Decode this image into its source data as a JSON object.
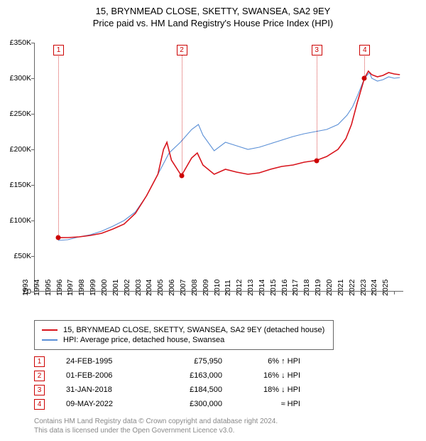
{
  "title_line1": "15, BRYNMEAD CLOSE, SKETTY, SWANSEA, SA2 9EY",
  "title_line2": "Price paid vs. HM Land Registry's House Price Index (HPI)",
  "chart": {
    "type": "line",
    "background_color": "#ffffff",
    "xlim": [
      1993,
      2025.8
    ],
    "ylim": [
      0,
      350000
    ],
    "ytick_step": 50000,
    "yticks": [
      "£0",
      "£50K",
      "£100K",
      "£150K",
      "£200K",
      "£250K",
      "£300K",
      "£350K"
    ],
    "xticks": [
      1993,
      1994,
      1995,
      1996,
      1997,
      1998,
      1999,
      2000,
      2001,
      2002,
      2003,
      2004,
      2005,
      2006,
      2007,
      2008,
      2009,
      2010,
      2011,
      2012,
      2013,
      2014,
      2015,
      2016,
      2017,
      2018,
      2019,
      2020,
      2021,
      2022,
      2023,
      2024,
      2025
    ],
    "series": [
      {
        "name": "15, BRYNMEAD CLOSE, SKETTY, SWANSEA, SA2 9EY (detached house)",
        "color": "#d8141c",
        "width": 1.6,
        "data": [
          [
            1995.15,
            75950
          ],
          [
            1996,
            76000
          ],
          [
            1997,
            77000
          ],
          [
            1998,
            79000
          ],
          [
            1999,
            82000
          ],
          [
            2000,
            88000
          ],
          [
            2001,
            95000
          ],
          [
            2002,
            110000
          ],
          [
            2003,
            135000
          ],
          [
            2004,
            165000
          ],
          [
            2004.5,
            200000
          ],
          [
            2004.8,
            210000
          ],
          [
            2005.2,
            185000
          ],
          [
            2006.09,
            163000
          ],
          [
            2007,
            188000
          ],
          [
            2007.5,
            195000
          ],
          [
            2008,
            178000
          ],
          [
            2009,
            165000
          ],
          [
            2010,
            172000
          ],
          [
            2011,
            168000
          ],
          [
            2012,
            165000
          ],
          [
            2013,
            167000
          ],
          [
            2014,
            172000
          ],
          [
            2015,
            176000
          ],
          [
            2016,
            178000
          ],
          [
            2017,
            182000
          ],
          [
            2018.08,
            184500
          ],
          [
            2019,
            190000
          ],
          [
            2020,
            200000
          ],
          [
            2020.7,
            215000
          ],
          [
            2021.2,
            235000
          ],
          [
            2021.7,
            265000
          ],
          [
            2022.35,
            300000
          ],
          [
            2022.7,
            310000
          ],
          [
            2023,
            305000
          ],
          [
            2023.5,
            302000
          ],
          [
            2024,
            304000
          ],
          [
            2024.5,
            308000
          ],
          [
            2025,
            306000
          ],
          [
            2025.5,
            305000
          ]
        ]
      },
      {
        "name": "HPI: Average price, detached house, Swansea",
        "color": "#5a8fd6",
        "width": 1.1,
        "data": [
          [
            1995.15,
            72000
          ],
          [
            1996,
            73000
          ],
          [
            1997,
            77000
          ],
          [
            1998,
            80000
          ],
          [
            1999,
            85000
          ],
          [
            2000,
            92000
          ],
          [
            2001,
            100000
          ],
          [
            2002,
            112000
          ],
          [
            2003,
            135000
          ],
          [
            2004,
            165000
          ],
          [
            2005,
            195000
          ],
          [
            2006,
            210000
          ],
          [
            2007,
            228000
          ],
          [
            2007.6,
            235000
          ],
          [
            2008,
            220000
          ],
          [
            2009,
            198000
          ],
          [
            2010,
            210000
          ],
          [
            2011,
            205000
          ],
          [
            2012,
            200000
          ],
          [
            2013,
            203000
          ],
          [
            2014,
            208000
          ],
          [
            2015,
            213000
          ],
          [
            2016,
            218000
          ],
          [
            2017,
            222000
          ],
          [
            2018,
            225000
          ],
          [
            2019,
            228000
          ],
          [
            2020,
            235000
          ],
          [
            2020.8,
            248000
          ],
          [
            2021.3,
            260000
          ],
          [
            2021.8,
            278000
          ],
          [
            2022.35,
            300000
          ],
          [
            2022.8,
            308000
          ],
          [
            2023,
            300000
          ],
          [
            2023.5,
            296000
          ],
          [
            2024,
            298000
          ],
          [
            2024.5,
            302000
          ],
          [
            2025,
            300000
          ],
          [
            2025.5,
            301000
          ]
        ]
      }
    ],
    "sale_markers": [
      {
        "n": "1",
        "date": "24-FEB-1995",
        "x": 1995.15,
        "price": 75950,
        "price_str": "£75,950",
        "diff": "6% ↑ HPI"
      },
      {
        "n": "2",
        "date": "01-FEB-2006",
        "x": 2006.09,
        "price": 163000,
        "price_str": "£163,000",
        "diff": "16% ↓ HPI"
      },
      {
        "n": "3",
        "date": "31-JAN-2018",
        "x": 2018.08,
        "price": 184500,
        "price_str": "£184,500",
        "diff": "18% ↓ HPI"
      },
      {
        "n": "4",
        "date": "09-MAY-2022",
        "x": 2022.35,
        "price": 300000,
        "price_str": "£300,000",
        "diff": "≈ HPI"
      }
    ],
    "marker_top_y": 340000
  },
  "legend": {
    "items": [
      {
        "color": "#d8141c",
        "label": "15, BRYNMEAD CLOSE, SKETTY, SWANSEA, SA2 9EY (detached house)"
      },
      {
        "color": "#5a8fd6",
        "label": "HPI: Average price, detached house, Swansea"
      }
    ]
  },
  "footer_line1": "Contains HM Land Registry data © Crown copyright and database right 2024.",
  "footer_line2": "This data is licensed under the Open Government Licence v3.0."
}
